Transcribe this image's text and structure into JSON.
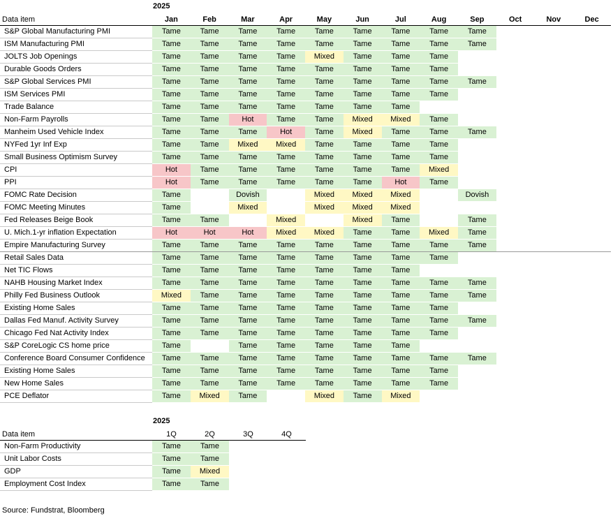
{
  "monthly": {
    "year": "2025",
    "header_label": "Data item",
    "months": [
      "Jan",
      "Feb",
      "Mar",
      "Apr",
      "May",
      "Jun",
      "Jul",
      "Aug",
      "Sep",
      "Oct",
      "Nov",
      "Dec"
    ],
    "rows": [
      {
        "item": "S&P Global Manufacturing PMI",
        "values": [
          "Tame",
          "Tame",
          "Tame",
          "Tame",
          "Tame",
          "Tame",
          "Tame",
          "Tame",
          "Tame",
          "",
          "",
          ""
        ]
      },
      {
        "item": "ISM Manufacturing PMI",
        "values": [
          "Tame",
          "Tame",
          "Tame",
          "Tame",
          "Tame",
          "Tame",
          "Tame",
          "Tame",
          "Tame",
          "",
          "",
          ""
        ]
      },
      {
        "item": "JOLTS Job Openings",
        "values": [
          "Tame",
          "Tame",
          "Tame",
          "Tame",
          "Mixed",
          "Tame",
          "Tame",
          "Tame",
          "",
          "",
          "",
          ""
        ]
      },
      {
        "item": "Durable Goods Orders",
        "values": [
          "Tame",
          "Tame",
          "Tame",
          "Tame",
          "Tame",
          "Tame",
          "Tame",
          "Tame",
          "",
          "",
          "",
          ""
        ]
      },
      {
        "item": "S&P Global Services PMI",
        "values": [
          "Tame",
          "Tame",
          "Tame",
          "Tame",
          "Tame",
          "Tame",
          "Tame",
          "Tame",
          "Tame",
          "",
          "",
          ""
        ]
      },
      {
        "item": "ISM Services PMI",
        "values": [
          "Tame",
          "Tame",
          "Tame",
          "Tame",
          "Tame",
          "Tame",
          "Tame",
          "Tame",
          "",
          "",
          "",
          ""
        ]
      },
      {
        "item": "Trade Balance",
        "values": [
          "Tame",
          "Tame",
          "Tame",
          "Tame",
          "Tame",
          "Tame",
          "Tame",
          "",
          "",
          "",
          "",
          ""
        ]
      },
      {
        "item": "Non-Farm Payrolls",
        "values": [
          "Tame",
          "Tame",
          "Hot",
          "Tame",
          "Tame",
          "Mixed",
          "Mixed",
          "Tame",
          "",
          "",
          "",
          ""
        ]
      },
      {
        "item": "Manheim Used Vehicle Index",
        "values": [
          "Tame",
          "Tame",
          "Tame",
          "Hot",
          "Tame",
          "Mixed",
          "Tame",
          "Tame",
          "Tame",
          "",
          "",
          ""
        ]
      },
      {
        "item": "NYFed 1yr Inf Exp",
        "values": [
          "Tame",
          "Tame",
          "Mixed",
          "Mixed",
          "Tame",
          "Tame",
          "Tame",
          "Tame",
          "",
          "",
          "",
          ""
        ]
      },
      {
        "item": "Small Business Optimism Survey",
        "values": [
          "Tame",
          "Tame",
          "Tame",
          "Tame",
          "Tame",
          "Tame",
          "Tame",
          "Tame",
          "",
          "",
          "",
          ""
        ]
      },
      {
        "item": "CPI",
        "values": [
          "Hot",
          "Tame",
          "Tame",
          "Tame",
          "Tame",
          "Tame",
          "Tame",
          "Mixed",
          "",
          "",
          "",
          ""
        ]
      },
      {
        "item": "PPI",
        "values": [
          "Hot",
          "Tame",
          "Tame",
          "Tame",
          "Tame",
          "Tame",
          "Hot",
          "Tame",
          "",
          "",
          "",
          ""
        ]
      },
      {
        "item": "FOMC Rate Decision",
        "values": [
          "Tame",
          "",
          "Dovish",
          "",
          "Mixed",
          "Mixed",
          "Mixed",
          "",
          "Dovish",
          "",
          "",
          ""
        ]
      },
      {
        "item": "FOMC Meeting Minutes",
        "values": [
          "Tame",
          "",
          "Mixed",
          "",
          "Mixed",
          "Mixed",
          "Mixed",
          "",
          "",
          "",
          "",
          ""
        ]
      },
      {
        "item": "Fed Releases Beige Book",
        "values": [
          "Tame",
          "Tame",
          "",
          "Mixed",
          "",
          "Mixed",
          "Tame",
          "",
          "Tame",
          "",
          "",
          ""
        ]
      },
      {
        "item": "U. Mich.1-yr  inflation Expectation",
        "values": [
          "Hot",
          "Hot",
          "Hot",
          "Mixed",
          "Mixed",
          "Tame",
          "Tame",
          "Mixed",
          "Tame",
          "",
          "",
          ""
        ]
      },
      {
        "item": "Empire Manufacturing Survey",
        "values": [
          "Tame",
          "Tame",
          "Tame",
          "Tame",
          "Tame",
          "Tame",
          "Tame",
          "Tame",
          "Tame",
          "",
          "",
          ""
        ]
      },
      {
        "item": "Retail Sales Data",
        "values": [
          "Tame",
          "Tame",
          "Tame",
          "Tame",
          "Tame",
          "Tame",
          "Tame",
          "Tame",
          "",
          "",
          "",
          ""
        ]
      },
      {
        "item": "Net TIC Flows",
        "values": [
          "Tame",
          "Tame",
          "Tame",
          "Tame",
          "Tame",
          "Tame",
          "Tame",
          "",
          "",
          "",
          "",
          ""
        ]
      },
      {
        "item": "NAHB Housing Market Index",
        "values": [
          "Tame",
          "Tame",
          "Tame",
          "Tame",
          "Tame",
          "Tame",
          "Tame",
          "Tame",
          "Tame",
          "",
          "",
          ""
        ]
      },
      {
        "item": "Philly Fed Business Outlook",
        "values": [
          "Mixed",
          "Tame",
          "Tame",
          "Tame",
          "Tame",
          "Tame",
          "Tame",
          "Tame",
          "Tame",
          "",
          "",
          ""
        ]
      },
      {
        "item": "Existing Home Sales",
        "values": [
          "Tame",
          "Tame",
          "Tame",
          "Tame",
          "Tame",
          "Tame",
          "Tame",
          "Tame",
          "",
          "",
          "",
          ""
        ]
      },
      {
        "item": "Dallas Fed Manuf. Activity Survey",
        "values": [
          "Tame",
          "Tame",
          "Tame",
          "Tame",
          "Tame",
          "Tame",
          "Tame",
          "Tame",
          "Tame",
          "",
          "",
          ""
        ]
      },
      {
        "item": "Chicago Fed Nat Activity Index",
        "values": [
          "Tame",
          "Tame",
          "Tame",
          "Tame",
          "Tame",
          "Tame",
          "Tame",
          "Tame",
          "",
          "",
          "",
          ""
        ]
      },
      {
        "item": "S&P CoreLogic CS home price",
        "values": [
          "Tame",
          "",
          "Tame",
          "Tame",
          "Tame",
          "Tame",
          "Tame",
          "",
          "",
          "",
          "",
          ""
        ]
      },
      {
        "item": "Conference Board Consumer Confidence",
        "values": [
          "Tame",
          "Tame",
          "Tame",
          "Tame",
          "Tame",
          "Tame",
          "Tame",
          "Tame",
          "Tame",
          "",
          "",
          ""
        ]
      },
      {
        "item": "Existing Home Sales",
        "values": [
          "Tame",
          "Tame",
          "Tame",
          "Tame",
          "Tame",
          "Tame",
          "Tame",
          "Tame",
          "",
          "",
          "",
          ""
        ]
      },
      {
        "item": "New Home Sales",
        "values": [
          "Tame",
          "Tame",
          "Tame",
          "Tame",
          "Tame",
          "Tame",
          "Tame",
          "Tame",
          "",
          "",
          "",
          ""
        ]
      },
      {
        "item": "PCE Deflator",
        "values": [
          "Tame",
          "Mixed",
          "Tame",
          "",
          "Mixed",
          "Tame",
          "Mixed",
          "",
          "",
          "",
          "",
          ""
        ]
      }
    ]
  },
  "quarterly": {
    "year": "2025",
    "header_label": "Data item",
    "quarters": [
      "1Q",
      "2Q",
      "3Q",
      "4Q"
    ],
    "rows": [
      {
        "item": "Non-Farm Productivity",
        "values": [
          "Tame",
          "Tame",
          "",
          ""
        ]
      },
      {
        "item": "Unit Labor Costs",
        "values": [
          "Tame",
          "Tame",
          "",
          ""
        ]
      },
      {
        "item": "GDP",
        "values": [
          "Tame",
          "Mixed",
          "",
          ""
        ]
      },
      {
        "item": "Employment Cost Index",
        "values": [
          "Tame",
          "Tame",
          "",
          ""
        ]
      }
    ]
  },
  "source": "Source: Fundstrat, Bloomberg",
  "colors": {
    "Tame": "#d9f1d3",
    "Mixed": "#fff8c4",
    "Hot": "#f7c6c8",
    "Dovish": "#d9f1d3"
  }
}
